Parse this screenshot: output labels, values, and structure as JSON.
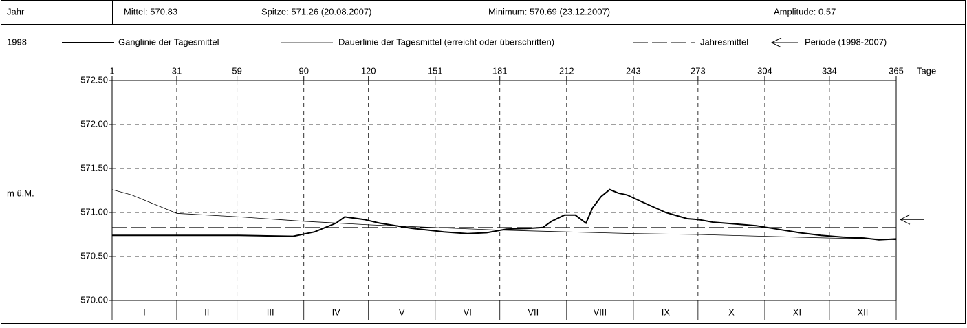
{
  "header": {
    "year_label": "Jahr",
    "mean": "Mittel: 570.83",
    "peak": "Spitze: 571.26 (20.08.2007)",
    "minimum": "Minimum: 570.69 (23.12.2007)",
    "amplitude": "Amplitude: 0.57"
  },
  "chart_data": {
    "type": "line",
    "year": "1998",
    "ylabel": "m ü.M.",
    "xlabel": "Tage",
    "xlim": [
      1,
      365
    ],
    "xticks": [
      1,
      31,
      59,
      90,
      120,
      151,
      181,
      212,
      243,
      273,
      304,
      334,
      365
    ],
    "ylim": [
      570,
      572.5
    ],
    "yticks": [
      {
        "value": 570,
        "label": "570.00"
      },
      {
        "value": 570.5,
        "label": "570.50"
      },
      {
        "value": 571,
        "label": "571.00"
      },
      {
        "value": 571.5,
        "label": "571.50"
      },
      {
        "value": 572,
        "label": "572.00"
      },
      {
        "value": 572.5,
        "label": "572.50"
      }
    ],
    "months": [
      "I",
      "II",
      "III",
      "IV",
      "V",
      "VI",
      "VII",
      "VIII",
      "IX",
      "X",
      "XI",
      "XII"
    ],
    "grid": true,
    "series": [
      {
        "name": "Ganglinie der Tagesmittel",
        "color": "#000000",
        "style": "thick",
        "x": [
          1,
          20,
          40,
          60,
          85,
          95,
          105,
          109,
          118,
          125,
          140,
          155,
          166,
          175,
          184,
          195,
          201,
          205,
          211,
          216,
          221,
          224,
          228,
          232,
          236,
          240,
          247,
          258,
          268,
          273,
          280,
          290,
          300,
          310,
          320,
          330,
          340,
          350,
          357,
          365
        ],
        "values": [
          570.74,
          570.74,
          570.74,
          570.74,
          570.73,
          570.78,
          570.88,
          570.95,
          570.92,
          570.88,
          570.82,
          570.78,
          570.76,
          570.77,
          570.81,
          570.82,
          570.83,
          570.9,
          570.97,
          570.97,
          570.88,
          571.05,
          571.18,
          571.26,
          571.22,
          571.2,
          571.12,
          571.0,
          570.93,
          570.92,
          570.89,
          570.87,
          570.85,
          570.81,
          570.77,
          570.74,
          570.72,
          570.71,
          570.69,
          570.7
        ]
      },
      {
        "name": "Dauerlinie der Tagesmittel (erreicht oder überschritten)",
        "color": "#000000",
        "style": "thin",
        "x": [
          1,
          10,
          20,
          31,
          60,
          90,
          120,
          150,
          181,
          212,
          243,
          273,
          304,
          334,
          357,
          365
        ],
        "values": [
          571.26,
          571.2,
          571.1,
          570.99,
          570.95,
          570.9,
          570.86,
          570.83,
          570.8,
          570.78,
          570.76,
          570.75,
          570.73,
          570.71,
          570.7,
          570.69
        ]
      },
      {
        "name": "Jahresmittel",
        "color": "#000000",
        "style": "dashed",
        "x": [
          1,
          365
        ],
        "values": [
          570.83,
          570.83
        ]
      },
      {
        "name": "Periode (1998-2007)",
        "color": "#000000",
        "style": "arrow",
        "x": [
          365
        ],
        "values": [
          570.92
        ]
      }
    ]
  }
}
